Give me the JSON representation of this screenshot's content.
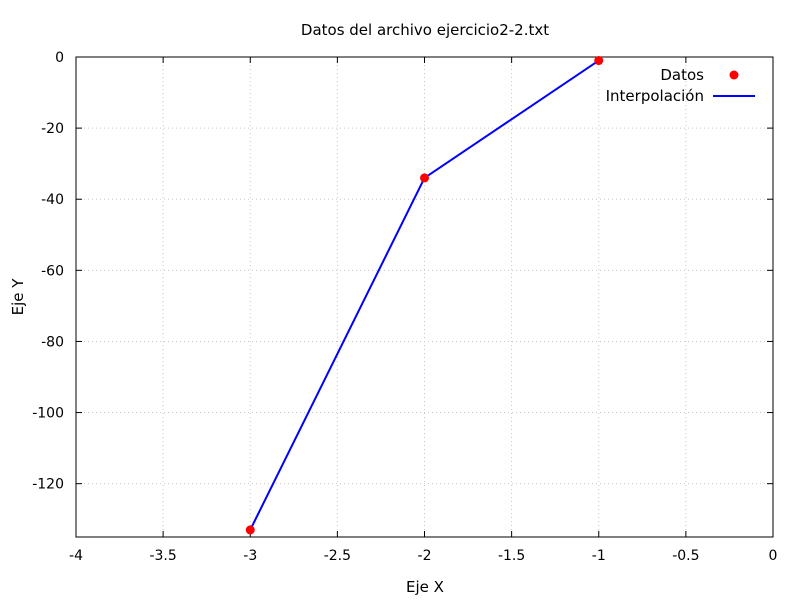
{
  "chart_data": {
    "type": "line",
    "title": "Datos del archivo ejercicio2-2.txt",
    "xlabel": "Eje X",
    "ylabel": "Eje Y",
    "xlim": [
      -4,
      0
    ],
    "ylim": [
      -135,
      0
    ],
    "xticks": [
      -4,
      -3.5,
      -3,
      -2.5,
      -2,
      -1.5,
      -1,
      -0.5,
      0
    ],
    "yticks": [
      0,
      -20,
      -40,
      -60,
      -80,
      -100,
      -120
    ],
    "grid": true,
    "legend_position": "top-right",
    "series": [
      {
        "name": "Datos",
        "style": "points",
        "color": "#ff0000",
        "x": [
          -3,
          -2,
          -1
        ],
        "y": [
          -133,
          -34,
          -1
        ]
      },
      {
        "name": "Interpolación",
        "style": "line",
        "color": "#0000ff",
        "x": [
          -3,
          -2,
          -1
        ],
        "y": [
          -133,
          -34,
          -1
        ]
      }
    ]
  }
}
